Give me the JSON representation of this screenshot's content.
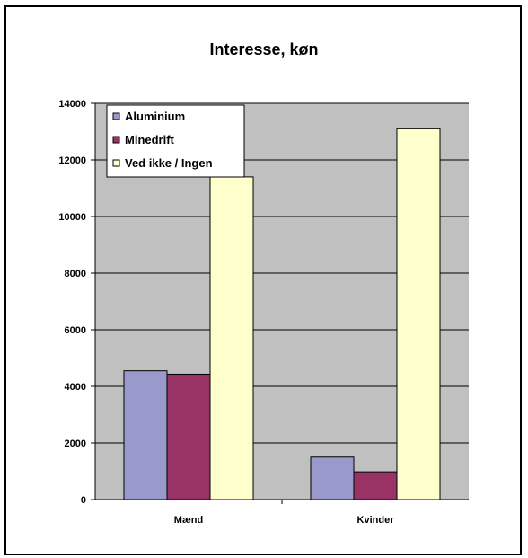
{
  "chart_data": {
    "type": "bar",
    "title": "Interesse, køn",
    "categories": [
      "Mænd",
      "Kvinder"
    ],
    "series": [
      {
        "name": "Aluminium",
        "color": "#9999cc",
        "values": [
          4550,
          1500
        ]
      },
      {
        "name": "Minedrift",
        "color": "#993366",
        "values": [
          4430,
          980
        ]
      },
      {
        "name": "Ved ikke / Ingen",
        "color": "#ffffcc",
        "values": [
          11400,
          13100
        ]
      }
    ],
    "ylim": [
      0,
      14000
    ],
    "yticks": [
      0,
      2000,
      4000,
      6000,
      8000,
      10000,
      12000,
      14000
    ],
    "grid": true,
    "plot_background": "#c0c0c0",
    "legend_position": "top-left"
  }
}
